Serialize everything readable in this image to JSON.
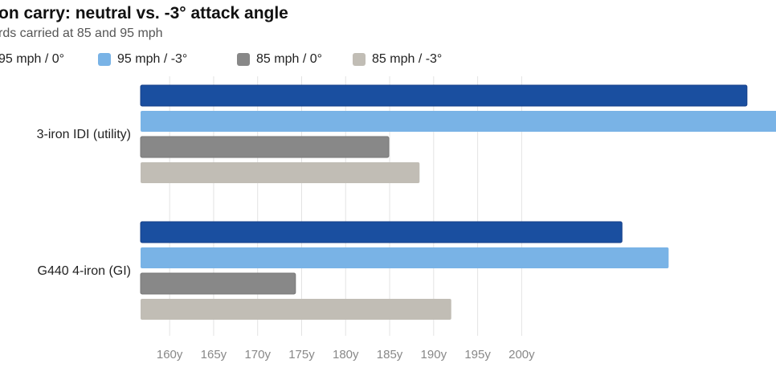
{
  "chart_data": {
    "type": "bar",
    "orientation": "horizontal",
    "title": "on carry: neutral vs. -3° attack angle",
    "subtitle": "rds carried at 85 and 95 mph",
    "categories": [
      "3-iron IDI (utility)",
      "G440 4-iron (GI)"
    ],
    "series": [
      {
        "name": "95 mph / 0°",
        "color": "#1a4fa0",
        "values": [
          225.6,
          211.4
        ]
      },
      {
        "name": "95 mph / -3°",
        "color": "#79b3e6",
        "values": [
          229.5,
          216.7
        ]
      },
      {
        "name": "85 mph / 0°",
        "color": "#888888",
        "values": [
          184.9,
          174.3
        ]
      },
      {
        "name": "85 mph / -3°",
        "color": "#c1bdb5",
        "values": [
          188.4,
          192.0
        ]
      }
    ],
    "xticks": [
      160,
      165,
      170,
      175,
      180,
      185,
      190,
      195,
      200
    ],
    "xtick_labels": [
      "160y",
      "165y",
      "170y",
      "175y",
      "180y",
      "185y",
      "190y",
      "195y",
      "200y"
    ],
    "xlim": [
      156.7,
      228.9
    ],
    "grid": true,
    "legend_position": "top"
  }
}
